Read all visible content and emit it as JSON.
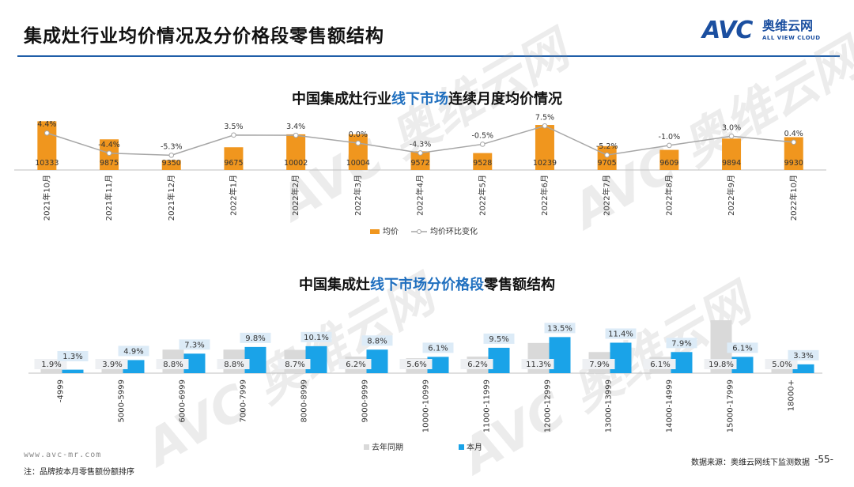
{
  "header": {
    "title": "集成灶行业均价情况及分价格段零售额结构",
    "logo_avc": "AVC",
    "logo_cn": "奥维云网",
    "logo_en": "ALL VIEW CLOUD"
  },
  "watermark": "AVC 奥维云网",
  "chart1": {
    "title_pre": "中国集成灶行业",
    "title_hl": "线下市场",
    "title_post": "连续月度均价情况"
  },
  "chart2": {
    "title_pre": "中国集成灶",
    "title_hl": "线下市场分价格段",
    "title_post": "零售额结构"
  },
  "chart_data": [
    {
      "type": "bar",
      "title": "中国集成灶行业线下市场连续月度均价情况",
      "categories": [
        "2021年10月",
        "2021年11月",
        "2021年12月",
        "2022年1月",
        "2022年2月",
        "2022年3月",
        "2022年4月",
        "2022年5月",
        "2022年6月",
        "2022年7月",
        "2022年8月",
        "2022年9月",
        "2022年10月"
      ],
      "series": [
        {
          "name": "均价",
          "type": "bar",
          "color": "#f0961e",
          "values": [
            10333,
            9875,
            9350,
            9675,
            10002,
            10004,
            9572,
            9528,
            10239,
            9705,
            9609,
            9894,
            9930
          ],
          "labels": [
            "10333",
            "9875",
            "9350",
            "9675",
            "10002",
            "10004",
            "9572",
            "9528",
            "10239",
            "9705",
            "9609",
            "9894",
            "9930"
          ]
        },
        {
          "name": "均价环比变化",
          "type": "line",
          "color": "#a6a6a6",
          "values": [
            4.4,
            -4.4,
            -5.3,
            3.5,
            3.4,
            0.0,
            -4.3,
            -0.5,
            7.5,
            -5.2,
            -1.0,
            3.0,
            0.4
          ],
          "labels": [
            "4.4%",
            "-4.4%",
            "-5.3%",
            "3.5%",
            "3.4%",
            "0.0%",
            "-4.3%",
            "-0.5%",
            "7.5%",
            "-5.2%",
            "-1.0%",
            "3.0%",
            "0.4%"
          ]
        }
      ],
      "legend": "bottom-center"
    },
    {
      "type": "bar",
      "title": "中国集成灶线下市场分价格段零售额结构",
      "categories": [
        "-4999",
        "5000-5999",
        "6000-6999",
        "7000-7999",
        "8000-8999",
        "9000-9999",
        "10000-10999",
        "11000-11999",
        "12000-12999",
        "13000-13999",
        "14000-14999",
        "15000-17999",
        "18000+"
      ],
      "series": [
        {
          "name": "去年同期",
          "color": "#d9d9d9",
          "values": [
            1.9,
            3.9,
            8.8,
            8.8,
            8.7,
            6.2,
            5.6,
            6.2,
            11.3,
            7.9,
            6.1,
            19.8,
            5.0
          ],
          "labels": [
            "1.9%",
            "3.9%",
            "8.8%",
            "8.8%",
            "8.7%",
            "6.2%",
            "5.6%",
            "6.2%",
            "11.3%",
            "7.9%",
            "6.1%",
            "19.8%",
            "5.0%"
          ]
        },
        {
          "name": "本月",
          "color": "#1aa3e8",
          "values": [
            1.3,
            4.9,
            7.3,
            9.8,
            10.1,
            8.8,
            6.1,
            9.5,
            13.5,
            11.4,
            7.9,
            6.1,
            3.3
          ],
          "labels": [
            "1.3%",
            "4.9%",
            "7.3%",
            "9.8%",
            "10.1%",
            "8.8%",
            "6.1%",
            "9.5%",
            "13.5%",
            "11.4%",
            "7.9%",
            "6.1%",
            "3.3%"
          ]
        }
      ],
      "legend": "bottom-center"
    }
  ],
  "footer": {
    "url": "www.avc-mr.com",
    "note": "注：品牌按本月零售额份额排序",
    "source": "数据来源：奥维云网线下监测数据",
    "page": "-55-"
  }
}
